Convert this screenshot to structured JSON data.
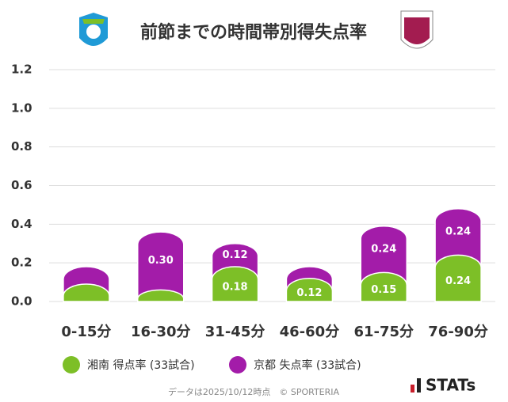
{
  "chart_data": {
    "type": "stacked-bar",
    "title": "前節までの時間帯別得失点率",
    "categories": [
      "0-15分",
      "16-30分",
      "31-45分",
      "46-60分",
      "61-75分",
      "76-90分"
    ],
    "series": [
      {
        "name": "湘南 得点率 (33試合)",
        "color": "#7dbf27",
        "values": [
          0.09,
          0.06,
          0.18,
          0.12,
          0.15,
          0.24
        ],
        "value_labels": [
          null,
          null,
          "0.18",
          "0.12",
          "0.15",
          "0.24"
        ]
      },
      {
        "name": "京都 失点率 (33試合)",
        "color": "#a31ca9",
        "values": [
          0.09,
          0.3,
          0.12,
          0.06,
          0.24,
          0.24
        ],
        "value_labels": [
          null,
          "0.30",
          "0.12",
          null,
          "0.24",
          "0.24"
        ]
      }
    ],
    "ylim": [
      0,
      1.2
    ],
    "yticks": [
      {
        "value": 0,
        "label": "0.0"
      },
      0.2,
      0.4,
      0.6,
      0.8,
      {
        "value": 1,
        "label": "1.0"
      },
      1.2
    ],
    "grid": true
  },
  "footer_note": "データは2025/10/12時点　© SPORTERIA",
  "brand": "STATs"
}
